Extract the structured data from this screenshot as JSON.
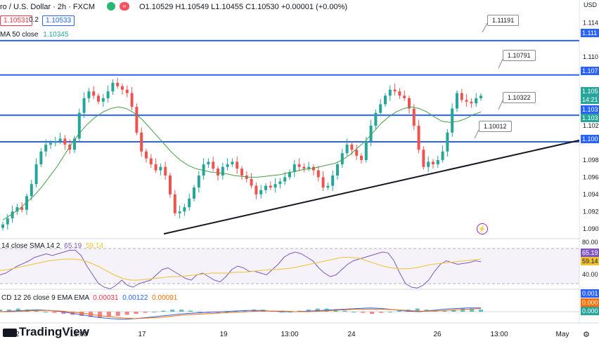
{
  "header": {
    "title": "ro / U.S. Dollar · 2h · FXCM",
    "ohlc": "O1.10529 H1.10549 L1.10455 C1.10530 +0.00001 (+0.00%)",
    "bid": "1.10531",
    "spread": "0.2",
    "ask": "1.10533",
    "currency": "USD",
    "ma_label": "MA 50 close",
    "ma_value": "1.10345"
  },
  "chart_data": {
    "type": "candlestick",
    "symbol": "ro / U.S. Dollar · 2h · FXCM",
    "ylim": [
      1.089,
      1.1155
    ],
    "y_ticks": [
      "1.114",
      "1.110",
      "1.106",
      "1.102",
      "1.098",
      "1.096",
      "1.094",
      "1.092",
      "1.090"
    ],
    "y_tick_values": [
      1.114,
      1.11,
      1.106,
      1.102,
      1.098,
      1.096,
      1.094,
      1.092,
      1.09
    ],
    "x_ticks": [
      "12",
      "13:00",
      "17",
      "19",
      "13:00",
      "24",
      "26",
      "13:00",
      "May"
    ],
    "candles_close": [
      1.0905,
      1.0912,
      1.092,
      1.0925,
      1.0922,
      1.0938,
      1.0952,
      1.0975,
      1.099,
      1.0998,
      1.1,
      1.1002,
      1.1005,
      1.0998,
      1.0992,
      1.1005,
      1.1035,
      1.1052,
      1.106,
      1.1055,
      1.1048,
      1.1052,
      1.106,
      1.107,
      1.1066,
      1.1062,
      1.1058,
      1.1042,
      1.1012,
      1.099,
      1.0982,
      1.0975,
      1.0968,
      1.0972,
      1.0962,
      1.094,
      1.0918,
      1.092,
      1.0925,
      1.0935,
      1.0948,
      1.0962,
      1.0975,
      1.0978,
      1.097,
      1.0962,
      1.0972,
      1.0975,
      1.0978,
      1.097,
      1.0962,
      1.0958,
      1.095,
      1.094,
      1.0945,
      1.095,
      1.0948,
      1.0952,
      1.0955,
      1.096,
      1.0966,
      1.0975,
      1.0972,
      1.097,
      1.0972,
      1.0968,
      1.096,
      1.0948,
      1.095,
      1.0962,
      1.0975,
      1.0988,
      1.0998,
      1.0992,
      1.0985,
      1.098,
      1.1002,
      1.102,
      1.1035,
      1.1045,
      1.1055,
      1.1062,
      1.106,
      1.1055,
      1.1052,
      1.104,
      1.102,
      1.0992,
      1.0972,
      1.0978,
      1.0975,
      1.098,
      1.099,
      1.1012,
      1.104,
      1.1058,
      1.105,
      1.1048,
      1.1046,
      1.1052,
      1.1055
    ],
    "sma": [
      1.091,
      1.0916,
      1.0922,
      1.093,
      1.0938,
      1.0948,
      1.096,
      1.0972,
      1.0986,
      1.1,
      1.1012,
      1.1022,
      1.103,
      1.1036,
      1.104,
      1.1042,
      1.104,
      1.1035,
      1.1028,
      1.1018,
      1.1008,
      1.0998,
      1.0988,
      1.098,
      1.0974,
      1.097,
      1.0968,
      1.0966,
      1.0965,
      1.0964,
      1.0962,
      1.0961,
      1.096,
      1.096,
      1.0961,
      1.0962,
      1.0963,
      1.0965,
      1.0967,
      1.0969,
      1.097,
      1.0972,
      1.0974,
      1.0976,
      1.098,
      1.0986,
      1.0994,
      1.1002,
      1.1012,
      1.1022,
      1.103,
      1.1036,
      1.104,
      1.1042,
      1.104,
      1.1036,
      1.103,
      1.1025,
      1.1024,
      1.1025,
      1.1028,
      1.1033,
      1.1036
    ],
    "resistance_levels": [
      "1.11191",
      "1.10791",
      "1.10322",
      "1.10012"
    ],
    "resistance_values": [
      1.11191,
      1.10791,
      1.10322,
      1.10012
    ],
    "trendline": [
      [
        "x_start",
        1.0894
      ],
      [
        "x_end",
        1.1003
      ]
    ],
    "right_tags": [
      {
        "text": "1.111",
        "color": "#2962ff"
      },
      {
        "text": "1.107",
        "color": "#2962ff"
      },
      {
        "text": "1.105",
        "color": "#26a69a"
      },
      {
        "text": "14:21",
        "color": "#26a69a"
      },
      {
        "text": "1.103",
        "color": "#2962ff"
      },
      {
        "text": "1.103",
        "color": "#26a69a"
      },
      {
        "text": "1.100",
        "color": "#2962ff"
      }
    ]
  },
  "rsi": {
    "label": "14 close SMA 14 2",
    "value": "65.19",
    "sma_value": "59.14",
    "tick_80": "80.00",
    "tick_40": "40.00",
    "tag_rsi": "65.19",
    "tag_sma": "59.14",
    "values": [
      50,
      52,
      56,
      60,
      63,
      66,
      70,
      72,
      74,
      72,
      74,
      76,
      78,
      78,
      72,
      60,
      50,
      40,
      36,
      34,
      38,
      44,
      38,
      36,
      40,
      42,
      44,
      50,
      56,
      58,
      54,
      50,
      46,
      44,
      50,
      52,
      48,
      44,
      42,
      48,
      56,
      60,
      58,
      54,
      54,
      52,
      50,
      56,
      62,
      70,
      74,
      76,
      74,
      70,
      66,
      58,
      52,
      48,
      50,
      56,
      62,
      66,
      68,
      70,
      72,
      74,
      76,
      75,
      66,
      52,
      40,
      36,
      35,
      38,
      44,
      54,
      62,
      66,
      64,
      62,
      63,
      64,
      66,
      65
    ],
    "sma_values": [
      55,
      56,
      58,
      60,
      62,
      64,
      66,
      67,
      68,
      68,
      67,
      64,
      60,
      55,
      50,
      46,
      44,
      44,
      45,
      46,
      47,
      48,
      48,
      49,
      50,
      51,
      52,
      52,
      52,
      53,
      53,
      54,
      55,
      56,
      56,
      57,
      58,
      60,
      62,
      64,
      66,
      68,
      70,
      70,
      69,
      66,
      63,
      60,
      58,
      57,
      57,
      58,
      60,
      62,
      63,
      64,
      65,
      66,
      67,
      68
    ]
  },
  "macd": {
    "label": "CD 12 26 close 9 EMA EMA",
    "v1": "0.00031",
    "v2": "0.00122",
    "v3": "0.00091",
    "tag1": "0.001",
    "tag2": "0.000",
    "tag3": "0.000"
  },
  "logo": "TradingView"
}
